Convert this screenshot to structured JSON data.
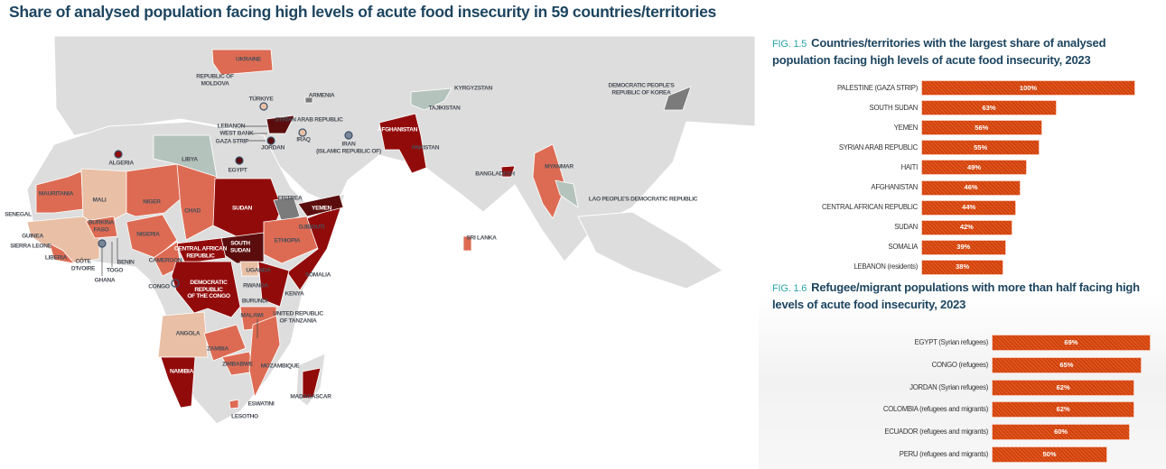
{
  "title": "Share of analysed population facing high levels of acute food insecurity in 59 countries/territories",
  "colors": {
    "dark": "#5b0d0d",
    "red": "#920b0b",
    "salmon": "#dd6b53",
    "peach": "#e9bfa5",
    "greygreen": "#b5c3bd",
    "darkgrey": "#7b7b7b",
    "land": "#dddddd",
    "bar": "#e4561b",
    "title": "#1d4560",
    "fig": "#2aa3a8"
  },
  "map": {
    "labels": [
      "UKRAINE",
      "REPUBLIC OF\nMOLDOVA",
      "TÜRKIYE",
      "ARMENIA",
      "KYRGYZSTAN",
      "TAJIKISTAN",
      "DEMOCRATIC PEOPLE'S\nREPUBLIC OF KOREA",
      "LEBANON",
      "SYRIAN ARAB REPUBLIC",
      "WEST BANK",
      "GAZA STRIP",
      "IRAQ",
      "JORDAN",
      "IRAN\n(ISLAMIC REPUBLIC OF)",
      "AFGHANISTAN",
      "PAKISTAN",
      "ALGERIA",
      "EGYPT",
      "LIBYA",
      "BANGLADESH",
      "MYANMAR",
      "LAO PEOPLE'S DEMOCRATIC REPUBLIC",
      "MAURITANIA",
      "MALI",
      "NIGER",
      "CHAD",
      "SUDAN",
      "ERITREA",
      "YEMEN",
      "DJIBOUTI",
      "ETHIOPIA",
      "SENEGAL",
      "GUINEA",
      "SIERRA LEONE",
      "BURKINA\nFASO",
      "NIGERIA",
      "SRI LANKA",
      "CENTRAL AFRICAN\nREPUBLIC",
      "SOUTH\nSUDAN",
      "LIBERIA",
      "CÔTE\nD'IVOIRE",
      "BENIN",
      "TOGO",
      "CAMEROON",
      "UGANDA",
      "SOMALIA",
      "GHANA",
      "CONGO",
      "DEMOCRATIC\nREPUBLIC\nOF THE CONGO",
      "RWANDA",
      "KENYA",
      "BURUNDI",
      "MALAWI",
      "UNITED REPUBLIC\nOF TANZANIA",
      "ANGOLA",
      "ZAMBIA",
      "ZIMBABWE",
      "MOZAMBIQUE",
      "NAMIBIA",
      "MADAGASCAR",
      "ESWATINI",
      "LESOTHO"
    ]
  },
  "chart_data": [
    {
      "type": "bar",
      "fig_number": "FIG. 1.5",
      "title": "Countries/territories with the largest share of analysed population facing high levels of acute food insecurity, 2023",
      "categories": [
        "PALESTINE (GAZA STRIP)",
        "SOUTH SUDAN",
        "YEMEN",
        "SYRIAN ARAB REPUBLIC",
        "HAITI",
        "AFGHANISTAN",
        "CENTRAL AFRICAN REPUBLIC",
        "SUDAN",
        "SOMALIA",
        "LEBANON (residents)"
      ],
      "values": [
        100,
        63,
        56,
        55,
        49,
        46,
        44,
        42,
        39,
        38
      ],
      "value_labels": [
        "100%",
        "63%",
        "56%",
        "55%",
        "49%",
        "46%",
        "44%",
        "42%",
        "39%",
        "38%"
      ],
      "orientation": "horizontal",
      "xlim": [
        0,
        100
      ]
    },
    {
      "type": "bar",
      "fig_number": "FIG. 1.6",
      "title": "Refugee/migrant populations with more than half facing high levels of acute food insecurity, 2023",
      "categories": [
        "EGYPT (Syrian refugees)",
        "CONGO (refugees)",
        "JORDAN (Syrian refugees)",
        "COLOMBIA (refugees and migrants)",
        "ECUADOR (refugees and migrants)",
        "PERU (refugees and migrants)"
      ],
      "values": [
        69,
        65,
        62,
        62,
        60,
        50
      ],
      "value_labels": [
        "69%",
        "65%",
        "62%",
        "62%",
        "60%",
        "50%"
      ],
      "orientation": "horizontal",
      "xlim": [
        0,
        69
      ]
    }
  ]
}
